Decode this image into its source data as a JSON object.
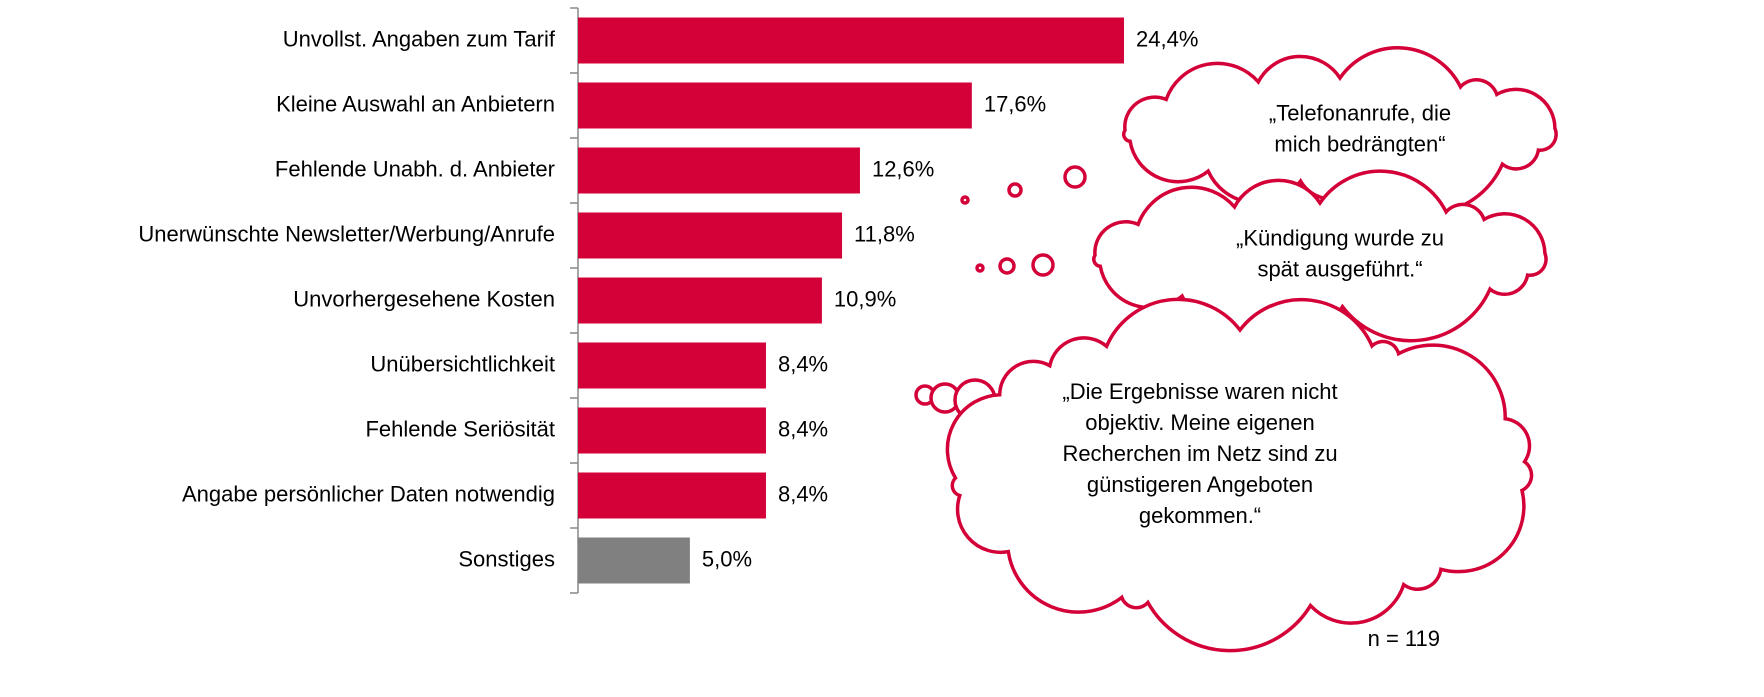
{
  "chart_data": {
    "type": "bar",
    "orientation": "horizontal",
    "categories": [
      "Unvollst. Angaben zum Tarif",
      "Kleine Auswahl an Anbietern",
      "Fehlende Unabh. d. Anbieter",
      "Unerwünschte Newsletter/Werbung/Anrufe",
      "Unvorhergesehene Kosten",
      "Unübersichtlichkeit",
      "Fehlende Seriösität",
      "Angabe persönlicher Daten notwendig",
      "Sonstiges"
    ],
    "values": [
      24.4,
      17.6,
      12.6,
      11.8,
      10.9,
      8.4,
      8.4,
      8.4,
      5.0
    ],
    "value_labels": [
      "24,4%",
      "17,6%",
      "12,6%",
      "11,8%",
      "10,9%",
      "8,4%",
      "8,4%",
      "8,4%",
      "5,0%"
    ],
    "colors": [
      "#d40038",
      "#d40038",
      "#d40038",
      "#d40038",
      "#d40038",
      "#d40038",
      "#d40038",
      "#d40038",
      "#808080"
    ],
    "xlim": [
      0,
      53
    ],
    "annotations": [
      [
        "„Telefonanrufe, die",
        "mich bedrängten“"
      ],
      [
        "„Kündigung wurde zu",
        "spät ausgeführt.“"
      ],
      [
        "„Die Ergebnisse waren nicht",
        "objektiv. Meine eigenen",
        "Recherchen im Netz sind zu",
        "günstigeren Angeboten",
        "gekommen.“"
      ]
    ],
    "note": "n = 119"
  }
}
